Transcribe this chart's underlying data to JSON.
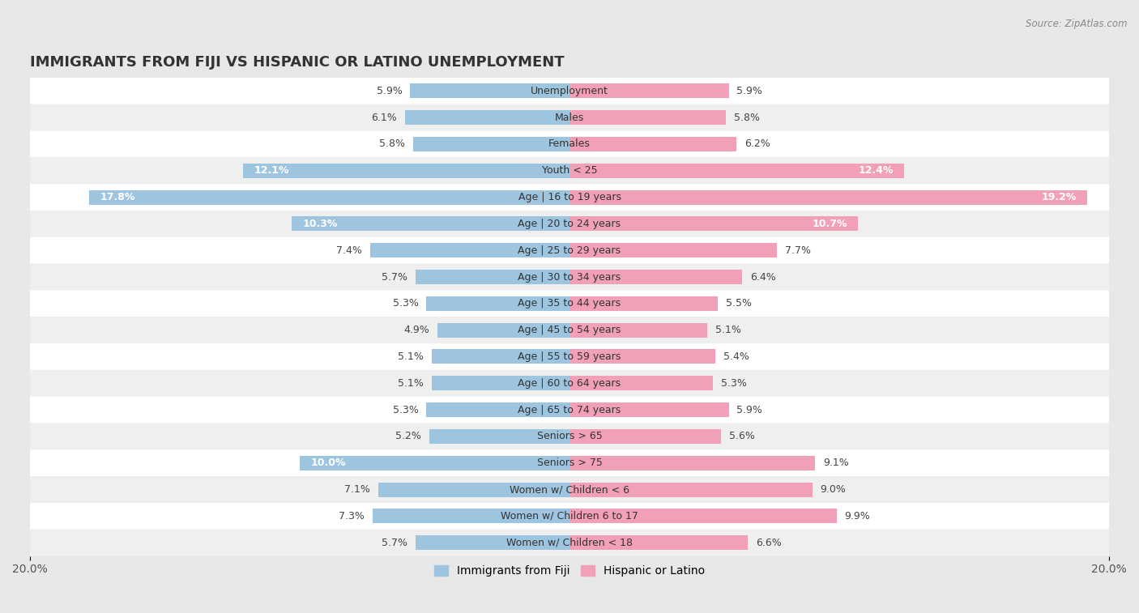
{
  "title": "IMMIGRANTS FROM FIJI VS HISPANIC OR LATINO UNEMPLOYMENT",
  "source": "Source: ZipAtlas.com",
  "categories": [
    "Unemployment",
    "Males",
    "Females",
    "Youth < 25",
    "Age | 16 to 19 years",
    "Age | 20 to 24 years",
    "Age | 25 to 29 years",
    "Age | 30 to 34 years",
    "Age | 35 to 44 years",
    "Age | 45 to 54 years",
    "Age | 55 to 59 years",
    "Age | 60 to 64 years",
    "Age | 65 to 74 years",
    "Seniors > 65",
    "Seniors > 75",
    "Women w/ Children < 6",
    "Women w/ Children 6 to 17",
    "Women w/ Children < 18"
  ],
  "fiji_values": [
    5.9,
    6.1,
    5.8,
    12.1,
    17.8,
    10.3,
    7.4,
    5.7,
    5.3,
    4.9,
    5.1,
    5.1,
    5.3,
    5.2,
    10.0,
    7.1,
    7.3,
    5.7
  ],
  "hispanic_values": [
    5.9,
    5.8,
    6.2,
    12.4,
    19.2,
    10.7,
    7.7,
    6.4,
    5.5,
    5.1,
    5.4,
    5.3,
    5.9,
    5.6,
    9.1,
    9.0,
    9.9,
    6.6
  ],
  "fiji_color": "#9ec5e0",
  "hispanic_color": "#f2a0b8",
  "bg_outer": "#e8e8e8",
  "bg_row_white": "#ffffff",
  "bg_row_gray": "#efefef",
  "max_value": 20.0,
  "fiji_label": "Immigrants from Fiji",
  "hispanic_label": "Hispanic or Latino",
  "label_fontsize": 9.0,
  "cat_fontsize": 9.0,
  "title_fontsize": 13,
  "source_fontsize": 8.5
}
